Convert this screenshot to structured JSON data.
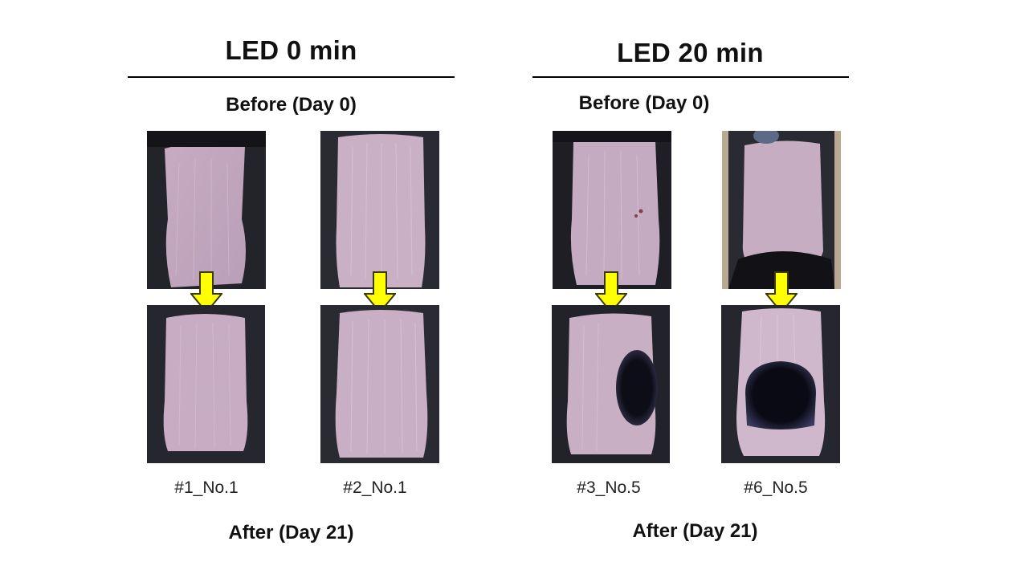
{
  "groups": [
    {
      "title": "LED 0 min",
      "before_label": "Before (Day 0)",
      "after_label": "After (Day 21)",
      "subjects": [
        "#1_No.1",
        "#2_No.1"
      ]
    },
    {
      "title": "LED 20 min",
      "before_label": "Before (Day 0)",
      "after_label": "After (Day 21)",
      "subjects": [
        "#3_No.5",
        "#6_No.5"
      ]
    }
  ],
  "colors": {
    "arrow_fill": "#ffff00",
    "arrow_stroke": "#3a3a00",
    "fur": "#2b2b33",
    "skin": "#cdb3c6",
    "regrowth": "#0d0d18"
  },
  "arrow_icon": "arrow-down-icon"
}
